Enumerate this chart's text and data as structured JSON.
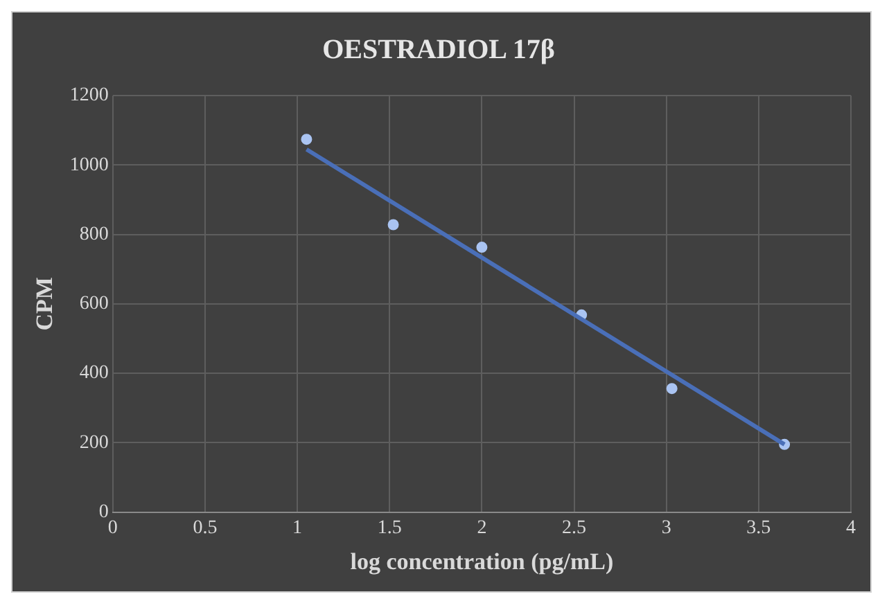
{
  "chart_data": {
    "type": "scatter",
    "title": "OESTRADIOL 17β",
    "xlabel": "log concentration (pg/mL)",
    "ylabel": "CPM",
    "series": [
      {
        "type": "scatter",
        "marker": "circle",
        "color": "#aac4f2",
        "x": [
          1.05,
          1.52,
          2.0,
          2.54,
          3.03,
          3.64
        ],
        "values": [
          1074,
          828,
          763,
          568,
          356,
          195
        ]
      },
      {
        "type": "line",
        "marker": "none",
        "color": "#4a6fb8",
        "x": [
          1.05,
          3.64
        ],
        "values": [
          1045,
          195
        ]
      }
    ],
    "xlim": [
      0,
      4
    ],
    "xticks": [
      0,
      0.5,
      1,
      1.5,
      2,
      2.5,
      3,
      3.5,
      4
    ],
    "ylim": [
      0,
      1200
    ],
    "yticks": [
      0,
      200,
      400,
      600,
      800,
      1000,
      1200
    ],
    "grid": true,
    "legend": false
  }
}
